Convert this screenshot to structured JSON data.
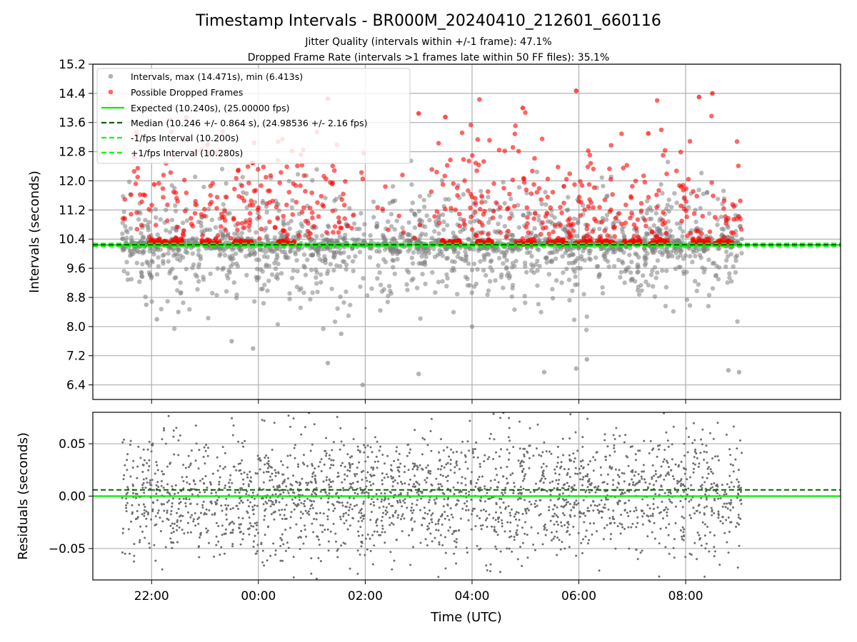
{
  "title": "Timestamp Intervals - BR000M_20240410_212601_660116",
  "subtitle_1": "Jitter Quality (intervals within +/-1 frame): 47.1%",
  "subtitle_2": "Dropped Frame Rate (intervals >1 frames late within 50 FF files): 35.1%",
  "colors": {
    "interval_points": "#808080",
    "dropped_points": "#ff0000",
    "expected_line": "#00ee00",
    "median_line": "#006400",
    "fps_interval_lines": "#00ff00",
    "residual_points": "#6e6e6e"
  },
  "chart_data": [
    {
      "type": "scatter",
      "ylabel": "Intervals (seconds)",
      "xlabel": "",
      "x_unit": "hours relative to 00:00 UTC (2024-04-11)",
      "xlim": [
        -3.1,
        10.9
      ],
      "ylim": [
        6.0,
        15.2
      ],
      "y_ticks": [
        6.4,
        7.2,
        8.0,
        8.8,
        9.6,
        10.4,
        11.2,
        12.0,
        12.8,
        13.6,
        14.4,
        15.2
      ],
      "y_tick_labels": [
        "6.4",
        "7.2",
        "8.0",
        "8.8",
        "9.6",
        "10.4",
        "11.2",
        "12.0",
        "12.8",
        "13.6",
        "14.4",
        "15.2"
      ],
      "x_ticks": [
        -2,
        0,
        2,
        4,
        6,
        8
      ],
      "grid": true,
      "legend_position": "top-left",
      "legend": [
        "Intervals, max (14.471s), min (6.413s)",
        "Possible Dropped Frames",
        "Expected (10.240s), (25.00000 fps)",
        "Median (10.246 +/- 0.864 s), (24.98536 +/- 2.16 fps)",
        "-1/fps Interval (10.200s)",
        "+1/fps Interval (10.280s)"
      ],
      "x_range_of_data": [
        -2.55,
        9.05
      ],
      "intervals_max": 14.471,
      "intervals_min": 6.413,
      "expected_interval": 10.24,
      "median_interval": 10.246,
      "minus_fps_interval": 10.2,
      "plus_fps_interval": 10.28,
      "series": [
        {
          "name": "Intervals, max (14.471s), min (6.413s)",
          "approx_points": 2600,
          "y_center": 10.24,
          "y_spread": 0.864,
          "sample_points": [
            {
              "x": -2.45,
              "y": 10.25
            },
            {
              "x": -2.1,
              "y": 8.6
            },
            {
              "x": -2.0,
              "y": 9.8
            },
            {
              "x": -1.9,
              "y": 8.2
            },
            {
              "x": -1.5,
              "y": 8.4
            },
            {
              "x": -0.5,
              "y": 7.6
            },
            {
              "x": -0.1,
              "y": 7.4
            },
            {
              "x": 1.3,
              "y": 7.0
            },
            {
              "x": 1.55,
              "y": 7.8
            },
            {
              "x": 1.95,
              "y": 6.4
            },
            {
              "x": 3.0,
              "y": 6.7
            },
            {
              "x": 4.0,
              "y": 8.0
            },
            {
              "x": 5.35,
              "y": 6.75
            },
            {
              "x": 5.95,
              "y": 6.85
            },
            {
              "x": 6.15,
              "y": 7.1
            },
            {
              "x": 8.8,
              "y": 6.8
            },
            {
              "x": 9.0,
              "y": 6.75
            },
            {
              "x": 9.05,
              "y": 10.4
            }
          ]
        },
        {
          "name": "Possible Dropped Frames",
          "approx_points": 850,
          "y_range": [
            10.28,
            14.47
          ],
          "sample_points": [
            {
              "x": 5.95,
              "y": 14.47
            },
            {
              "x": 1.3,
              "y": 14.25
            },
            {
              "x": 8.5,
              "y": 14.4
            },
            {
              "x": 8.25,
              "y": 14.3
            },
            {
              "x": 3.5,
              "y": 13.75
            },
            {
              "x": 3.0,
              "y": 13.85
            },
            {
              "x": -1.95,
              "y": 11.9
            },
            {
              "x": -0.95,
              "y": 13.0
            },
            {
              "x": 4.95,
              "y": 14.0
            },
            {
              "x": 7.3,
              "y": 13.3
            }
          ]
        },
        {
          "name": "Expected (10.240s), (25.00000 fps)",
          "kind": "hline",
          "y": 10.24
        },
        {
          "name": "Median (10.246 +/- 0.864 s), (24.98536 +/- 2.16 fps)",
          "kind": "hline",
          "y": 10.246
        },
        {
          "name": "-1/fps Interval (10.200s)",
          "kind": "hline",
          "y": 10.2
        },
        {
          "name": "+1/fps Interval (10.280s)",
          "kind": "hline",
          "y": 10.28
        }
      ]
    },
    {
      "type": "scatter",
      "ylabel": "Residuals (seconds)",
      "xlabel": "Time (UTC)",
      "xlim": [
        -3.1,
        10.9
      ],
      "ylim": [
        -0.08,
        0.08
      ],
      "y_ticks": [
        -0.05,
        0.0,
        0.05
      ],
      "y_tick_labels": [
        "−0.05",
        "0.00",
        "0.05"
      ],
      "x_ticks": [
        -2,
        0,
        2,
        4,
        6,
        8
      ],
      "x_tick_labels": [
        "22:00",
        "00:00",
        "02:00",
        "04:00",
        "06:00",
        "08:00"
      ],
      "grid": true,
      "zero_line": 0.0,
      "median_residual_line": 0.006,
      "series": [
        {
          "name": "",
          "approx_points": 2600,
          "y_center": 0.0,
          "y_spread": 0.035,
          "sample_points": [
            {
              "x": -2.45,
              "y": 0.04
            },
            {
              "x": -1.8,
              "y": -0.07
            },
            {
              "x": -0.05,
              "y": -0.055
            },
            {
              "x": 0.3,
              "y": 0.07
            },
            {
              "x": 2.5,
              "y": -0.07
            },
            {
              "x": 4.7,
              "y": 0.065
            },
            {
              "x": 6.7,
              "y": 0.065
            },
            {
              "x": 8.6,
              "y": 0.07
            },
            {
              "x": 9.0,
              "y": 0.01
            }
          ]
        }
      ]
    }
  ]
}
